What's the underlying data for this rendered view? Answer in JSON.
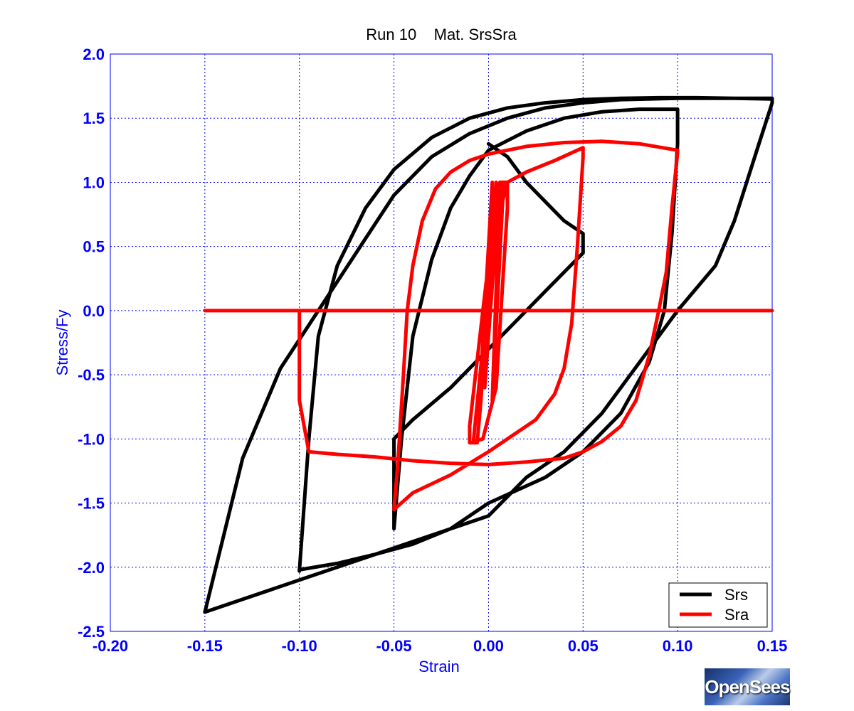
{
  "chart_data": {
    "type": "line",
    "title": "Run 10    Mat. SrsSra",
    "xlabel": "Strain",
    "ylabel": "Stress/Fy",
    "xlim": [
      -0.2,
      0.15
    ],
    "ylim": [
      -2.5,
      2.0
    ],
    "xticks": [
      -0.2,
      -0.15,
      -0.1,
      -0.05,
      0.0,
      0.05,
      0.1,
      0.15
    ],
    "xtick_labels": [
      "-0.20",
      "-0.15",
      "-0.10",
      "-0.05",
      "0.00",
      "0.05",
      "0.10",
      "0.15"
    ],
    "yticks": [
      2.0,
      1.5,
      1.0,
      0.5,
      0.0,
      -0.5,
      -1.0,
      -1.5,
      -2.0,
      -2.5
    ],
    "ytick_labels": [
      "2.0",
      "1.5",
      "1.0",
      "0.5",
      "0.0",
      "-0.5",
      "-1.0",
      "-1.5",
      "-2.0",
      "-2.5"
    ],
    "grid": true,
    "legend_position": "bottom-right",
    "series": [
      {
        "name": "Srs",
        "color": "#000000",
        "x": [
          0.0,
          0.01,
          0.02,
          0.03,
          0.04,
          0.05,
          0.05,
          0.03,
          0.01,
          0.0,
          -0.02,
          -0.04,
          -0.05,
          -0.05,
          -0.046,
          -0.04,
          -0.03,
          -0.02,
          -0.01,
          0.0,
          0.02,
          0.04,
          0.06,
          0.08,
          0.1,
          0.1,
          0.097,
          0.093,
          0.085,
          0.07,
          0.05,
          0.03,
          0.0,
          -0.02,
          -0.04,
          -0.06,
          -0.08,
          -0.1,
          -0.1,
          -0.095,
          -0.09,
          -0.08,
          -0.065,
          -0.05,
          -0.03,
          -0.01,
          0.01,
          0.03,
          0.05,
          0.07,
          0.09,
          0.11,
          0.13,
          0.15,
          0.15,
          0.143,
          0.13,
          0.12,
          0.1,
          0.08,
          0.06,
          0.04,
          0.02,
          0.0,
          -0.05,
          -0.1,
          -0.15,
          -0.15,
          -0.13,
          -0.11,
          -0.09,
          -0.07,
          -0.05,
          -0.03,
          -0.01,
          0.01,
          0.03,
          0.05,
          0.07,
          0.1,
          0.12,
          0.15
        ],
        "y": [
          1.3,
          1.2,
          1.0,
          0.85,
          0.7,
          0.6,
          0.45,
          0.15,
          -0.15,
          -0.3,
          -0.6,
          -0.85,
          -1.0,
          -1.7,
          -1.0,
          -0.2,
          0.4,
          0.8,
          1.05,
          1.25,
          1.4,
          1.5,
          1.55,
          1.57,
          1.57,
          1.3,
          0.6,
          0.0,
          -0.4,
          -0.8,
          -1.1,
          -1.3,
          -1.5,
          -1.7,
          -1.82,
          -1.9,
          -1.97,
          -2.02,
          -2.03,
          -1.0,
          -0.2,
          0.35,
          0.8,
          1.1,
          1.35,
          1.5,
          1.58,
          1.62,
          1.645,
          1.655,
          1.66,
          1.66,
          1.655,
          1.65,
          1.62,
          1.3,
          0.7,
          0.35,
          0.0,
          -0.4,
          -0.8,
          -1.1,
          -1.3,
          -1.6,
          -1.85,
          -2.1,
          -2.35,
          -2.35,
          -1.15,
          -0.45,
          0.0,
          0.45,
          0.9,
          1.2,
          1.38,
          1.5,
          1.58,
          1.62,
          1.645,
          1.655,
          1.655,
          1.655
        ]
      },
      {
        "name": "Sra",
        "color": "#ff0000",
        "x": [
          -0.15,
          -0.1,
          -0.05,
          0.0,
          0.05,
          0.09,
          0.15
        ],
        "y": [
          0.0,
          0.0,
          0.0,
          0.0,
          0.0,
          0.0,
          0.0
        ]
      },
      {
        "name": "",
        "color": "#ff0000",
        "x": [
          0.0,
          0.002,
          -0.004,
          0.004,
          -0.002,
          0.006,
          0.002,
          0.008,
          0.005,
          -0.008,
          -0.003,
          0.004,
          0.01,
          0.01,
          0.006,
          0.004,
          0.001,
          -0.003,
          -0.01,
          -0.01,
          -0.006,
          -0.004,
          -0.001,
          0.003,
          0.01,
          0.02,
          0.035,
          0.05,
          0.05,
          0.047,
          0.044,
          0.04,
          0.035,
          0.025,
          0.01,
          0.0,
          -0.02,
          -0.04,
          -0.05,
          -0.05,
          -0.048,
          -0.045,
          -0.043,
          -0.04,
          -0.035,
          -0.028,
          -0.02,
          -0.01,
          0.0,
          0.02,
          0.04,
          0.06,
          0.08,
          0.1,
          0.1,
          0.097,
          0.094,
          0.09,
          0.085,
          0.078,
          0.07,
          0.06,
          0.05,
          0.04,
          0.02,
          0.0,
          -0.02,
          -0.04,
          -0.06,
          -0.08,
          -0.095,
          -0.1,
          -0.1
        ],
        "y": [
          0.0,
          1.0,
          -0.5,
          1.0,
          -0.6,
          1.0,
          -0.7,
          1.0,
          0.9,
          -1.02,
          -1.0,
          -0.6,
          0.8,
          1.0,
          1.0,
          0.9,
          0.5,
          0.0,
          -0.9,
          -1.03,
          -1.03,
          -0.7,
          0.0,
          0.6,
          1.0,
          1.08,
          1.17,
          1.27,
          1.2,
          0.5,
          -0.1,
          -0.45,
          -0.65,
          -0.85,
          -1.0,
          -1.1,
          -1.28,
          -1.42,
          -1.55,
          -1.55,
          -1.2,
          -0.5,
          0.0,
          0.35,
          0.7,
          0.95,
          1.08,
          1.17,
          1.22,
          1.28,
          1.31,
          1.32,
          1.3,
          1.25,
          1.23,
          0.8,
          0.3,
          0.0,
          -0.35,
          -0.7,
          -0.9,
          -1.02,
          -1.1,
          -1.15,
          -1.18,
          -1.2,
          -1.19,
          -1.17,
          -1.14,
          -1.12,
          -1.1,
          -0.7,
          0.0
        ]
      }
    ],
    "legend": [
      {
        "name": "Srs",
        "color": "#000000"
      },
      {
        "name": "Sra",
        "color": "#ff0000"
      }
    ]
  },
  "logo": {
    "text": "OpenSees"
  }
}
